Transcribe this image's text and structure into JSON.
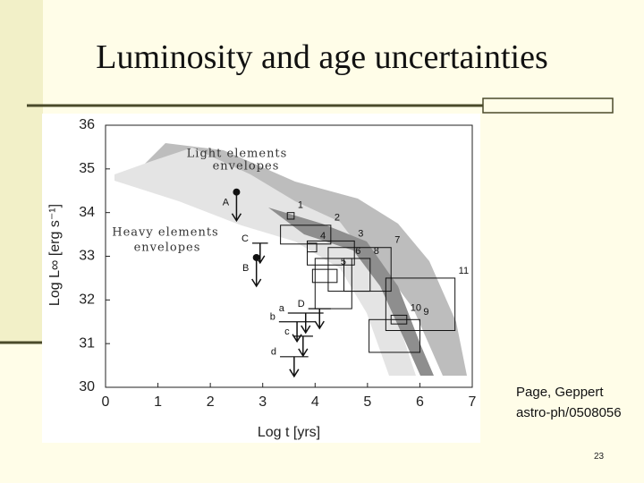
{
  "slide": {
    "title": "Luminosity and age uncertainties",
    "citation": [
      "Page, Geppert",
      "astro-ph/0508056"
    ],
    "page_number": "23"
  },
  "chart_data": {
    "type": "boxes",
    "xlabel": "Log t [yrs]",
    "ylabel": "Log L∞ [erg s⁻¹]",
    "xlim": [
      0,
      7
    ],
    "ylim": [
      30,
      36
    ],
    "xticks": [
      0,
      1,
      2,
      3,
      4,
      5,
      6,
      7
    ],
    "yticks": [
      30,
      31,
      32,
      33,
      34,
      35,
      36
    ],
    "annotations": [
      "Light elements",
      "envelopes",
      "Heavy elements",
      "envelopes"
    ],
    "boxes": [
      {
        "label": "1",
        "x": [
          3.47,
          3.6
        ],
        "y": [
          33.85,
          34.0
        ]
      },
      {
        "label": "2",
        "x": [
          3.34,
          4.3
        ],
        "y": [
          33.28,
          33.71
        ]
      },
      {
        "label": "3",
        "x": [
          3.85,
          4.75
        ],
        "y": [
          32.8,
          33.35
        ]
      },
      {
        "label": "4",
        "x": [
          3.85,
          4.03
        ],
        "y": [
          33.1,
          33.3
        ]
      },
      {
        "label": "5",
        "x": [
          3.95,
          4.42
        ],
        "y": [
          32.4,
          32.7
        ]
      },
      {
        "label": "6",
        "x": [
          4.0,
          4.7
        ],
        "y": [
          31.8,
          32.95
        ]
      },
      {
        "label": "7",
        "x": [
          4.25,
          5.45
        ],
        "y": [
          32.2,
          33.2
        ]
      },
      {
        "label": "8",
        "x": [
          4.55,
          5.05
        ],
        "y": [
          32.2,
          32.95
        ]
      },
      {
        "label": "9",
        "x": [
          5.03,
          6.0
        ],
        "y": [
          30.8,
          31.55
        ]
      },
      {
        "label": "10",
        "x": [
          5.45,
          5.75
        ],
        "y": [
          31.45,
          31.65
        ]
      },
      {
        "label": "11",
        "x": [
          5.35,
          6.67
        ],
        "y": [
          31.3,
          32.5
        ]
      }
    ],
    "points": [
      {
        "label": "A",
        "x": 2.5,
        "y": 34.47
      },
      {
        "label": "B",
        "x": 2.88,
        "y": 32.97
      }
    ],
    "upper_limits": [
      {
        "label": "C",
        "x": [
          2.8,
          3.1
        ],
        "y": 33.3
      },
      {
        "label": "D",
        "x": [
          3.87,
          4.3
        ],
        "y": 31.8
      },
      {
        "label": "a",
        "x": [
          3.48,
          4.16
        ],
        "y": 31.7
      },
      {
        "label": "b",
        "x": [
          3.31,
          4.0
        ],
        "y": 31.5
      },
      {
        "label": "c",
        "x": [
          3.58,
          3.96
        ],
        "y": 31.17
      },
      {
        "label": "d",
        "x": [
          3.33,
          3.87
        ],
        "y": 30.7
      }
    ]
  }
}
